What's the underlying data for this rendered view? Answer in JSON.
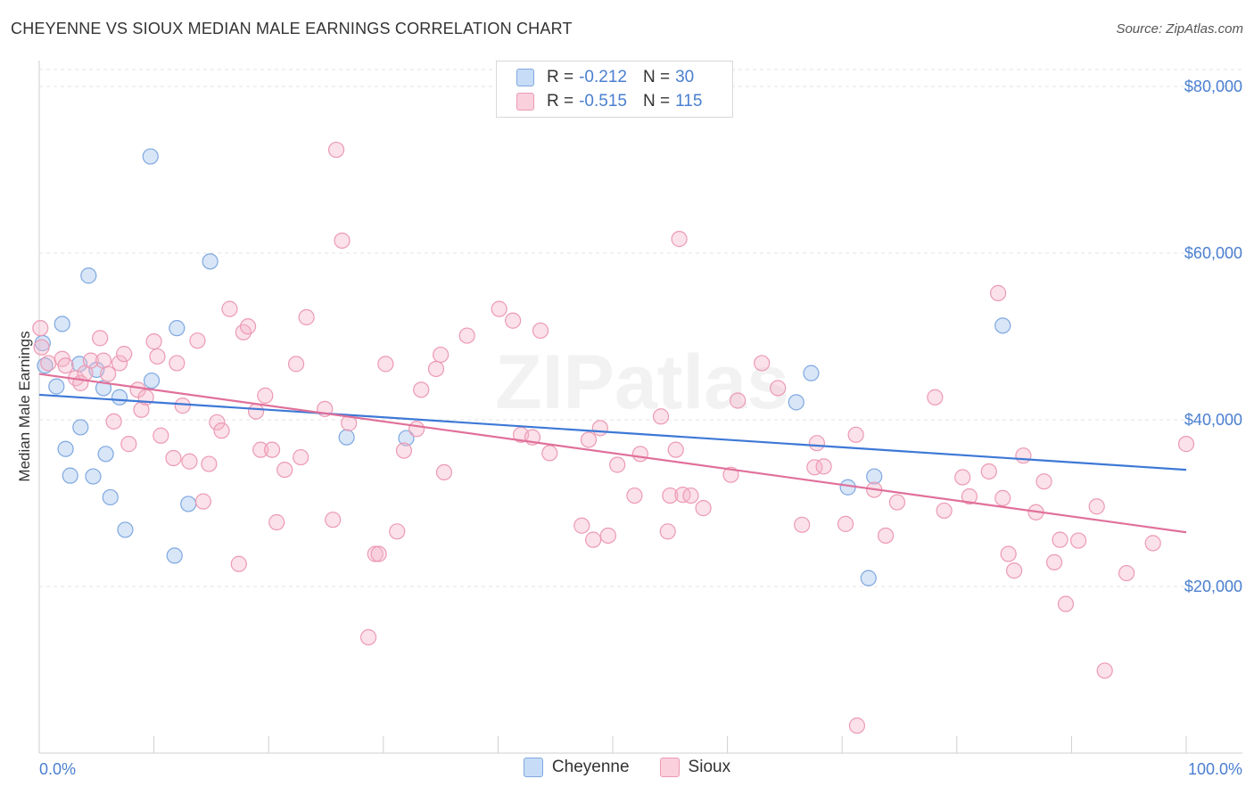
{
  "title": "CHEYENNE VS SIOUX MEDIAN MALE EARNINGS CORRELATION CHART",
  "source": "Source: ZipAtlas.com",
  "watermark": "ZIPatlas",
  "legend": {
    "rows": [
      {
        "r_label": "R =",
        "r_value": "-0.212",
        "n_label": "N =",
        "n_value": "30"
      },
      {
        "r_label": "R =",
        "r_value": "-0.515",
        "n_label": "N =",
        "n_value": "115"
      }
    ]
  },
  "bottom_legend": [
    "Cheyenne",
    "Sioux"
  ],
  "chart_data": {
    "type": "scatter",
    "title": "CHEYENNE VS SIOUX MEDIAN MALE EARNINGS CORRELATION CHART",
    "xlabel": "",
    "ylabel": "Median Male Earnings",
    "xlim": [
      0,
      100
    ],
    "ylim": [
      0,
      82000
    ],
    "x_tick_labels": [
      "0.0%",
      "100.0%"
    ],
    "y_ticks": [
      20000,
      40000,
      60000,
      80000
    ],
    "y_tick_labels": [
      "$20,000",
      "$40,000",
      "$60,000",
      "$80,000"
    ],
    "grid": "horizontal dashed",
    "legend_position": "top-center",
    "colors": {
      "cheyenne": "#a9c8f0",
      "cheyenne_line": "#3d78d6",
      "sioux": "#f5b5c8",
      "sioux_line": "#e0709a",
      "axis_text": "#4a7fd0"
    },
    "series": [
      {
        "name": "Cheyenne",
        "trend": [
          [
            0,
            43000
          ],
          [
            100,
            34000
          ]
        ],
        "points": [
          [
            0.3,
            49200
          ],
          [
            0.5,
            46500
          ],
          [
            1.5,
            44000
          ],
          [
            2,
            51500
          ],
          [
            2.3,
            36500
          ],
          [
            2.7,
            33300
          ],
          [
            3.5,
            46700
          ],
          [
            3.6,
            39100
          ],
          [
            4.3,
            57300
          ],
          [
            4.7,
            33200
          ],
          [
            5,
            46000
          ],
          [
            5.6,
            43800
          ],
          [
            5.8,
            35900
          ],
          [
            6.2,
            30700
          ],
          [
            7,
            42700
          ],
          [
            7.5,
            26800
          ],
          [
            9.7,
            71600
          ],
          [
            9.8,
            44700
          ],
          [
            11.8,
            23700
          ],
          [
            12,
            51000
          ],
          [
            13,
            29900
          ],
          [
            14.9,
            59000
          ],
          [
            26.8,
            37900
          ],
          [
            32,
            37800
          ],
          [
            84,
            51300
          ],
          [
            66,
            42100
          ],
          [
            67.3,
            45600
          ],
          [
            70.5,
            31900
          ],
          [
            72.3,
            21000
          ],
          [
            72.8,
            33200
          ]
        ]
      },
      {
        "name": "Sioux",
        "trend": [
          [
            0,
            45500
          ],
          [
            100,
            26500
          ]
        ],
        "points": [
          [
            0.1,
            51000
          ],
          [
            0.2,
            48700
          ],
          [
            0.8,
            46800
          ],
          [
            2,
            47300
          ],
          [
            2.3,
            46500
          ],
          [
            3.2,
            45000
          ],
          [
            3.6,
            44400
          ],
          [
            4,
            45600
          ],
          [
            4.5,
            47100
          ],
          [
            5.3,
            49800
          ],
          [
            5.6,
            47100
          ],
          [
            6,
            45500
          ],
          [
            6.5,
            39800
          ],
          [
            7,
            46800
          ],
          [
            7.4,
            47900
          ],
          [
            7.8,
            37100
          ],
          [
            8.6,
            43600
          ],
          [
            8.9,
            41200
          ],
          [
            9.3,
            42700
          ],
          [
            10,
            49400
          ],
          [
            10.3,
            47600
          ],
          [
            10.6,
            38100
          ],
          [
            11.7,
            35400
          ],
          [
            12,
            46800
          ],
          [
            12.5,
            41700
          ],
          [
            13.1,
            35000
          ],
          [
            13.8,
            49500
          ],
          [
            14.3,
            30200
          ],
          [
            14.8,
            34700
          ],
          [
            15.5,
            39700
          ],
          [
            15.9,
            38700
          ],
          [
            16.6,
            53300
          ],
          [
            17.4,
            22700
          ],
          [
            17.8,
            50500
          ],
          [
            18.2,
            51200
          ],
          [
            18.9,
            41000
          ],
          [
            19.3,
            36400
          ],
          [
            19.7,
            42900
          ],
          [
            20.3,
            36400
          ],
          [
            20.7,
            27700
          ],
          [
            21.4,
            34000
          ],
          [
            22.4,
            46700
          ],
          [
            22.8,
            35500
          ],
          [
            23.3,
            52300
          ],
          [
            24.9,
            41300
          ],
          [
            25.6,
            28000
          ],
          [
            25.9,
            72400
          ],
          [
            26.4,
            61500
          ],
          [
            27,
            39600
          ],
          [
            28.7,
            13900
          ],
          [
            29.3,
            23900
          ],
          [
            29.6,
            23900
          ],
          [
            30.2,
            46700
          ],
          [
            31.2,
            26600
          ],
          [
            31.8,
            36300
          ],
          [
            32.9,
            38900
          ],
          [
            33.3,
            43600
          ],
          [
            34.6,
            46100
          ],
          [
            35,
            47800
          ],
          [
            35.3,
            33700
          ],
          [
            37.3,
            50100
          ],
          [
            40.1,
            53300
          ],
          [
            41.3,
            51900
          ],
          [
            42,
            38200
          ],
          [
            43,
            37900
          ],
          [
            43.7,
            50700
          ],
          [
            44.5,
            36000
          ],
          [
            47.3,
            27300
          ],
          [
            47.9,
            37600
          ],
          [
            48.3,
            25600
          ],
          [
            48.9,
            39000
          ],
          [
            49.6,
            26100
          ],
          [
            50.4,
            34600
          ],
          [
            51.9,
            30900
          ],
          [
            52.4,
            35900
          ],
          [
            54.2,
            40400
          ],
          [
            54.8,
            26600
          ],
          [
            55,
            30900
          ],
          [
            55.5,
            36400
          ],
          [
            55.8,
            61700
          ],
          [
            56.1,
            31000
          ],
          [
            56.8,
            30900
          ],
          [
            57.9,
            29400
          ],
          [
            60.3,
            33400
          ],
          [
            60.9,
            42300
          ],
          [
            63,
            46800
          ],
          [
            64.4,
            43800
          ],
          [
            66.5,
            27400
          ],
          [
            67.6,
            34300
          ],
          [
            67.8,
            37200
          ],
          [
            68.4,
            34400
          ],
          [
            70.3,
            27500
          ],
          [
            71.2,
            38200
          ],
          [
            71.3,
            3300
          ],
          [
            72.8,
            31600
          ],
          [
            73.8,
            26100
          ],
          [
            74.8,
            30100
          ],
          [
            78.1,
            42700
          ],
          [
            78.9,
            29100
          ],
          [
            80.5,
            33100
          ],
          [
            81.1,
            30800
          ],
          [
            82.8,
            33800
          ],
          [
            83.6,
            55200
          ],
          [
            84,
            30600
          ],
          [
            84.5,
            23900
          ],
          [
            85,
            21900
          ],
          [
            85.8,
            35700
          ],
          [
            86.9,
            28900
          ],
          [
            87.6,
            32600
          ],
          [
            88.5,
            22900
          ],
          [
            89,
            25600
          ],
          [
            89.5,
            17900
          ],
          [
            90.6,
            25500
          ],
          [
            92.2,
            29600
          ],
          [
            92.9,
            9900
          ],
          [
            94.8,
            21600
          ],
          [
            97.1,
            25200
          ],
          [
            100,
            37100
          ]
        ]
      }
    ]
  }
}
